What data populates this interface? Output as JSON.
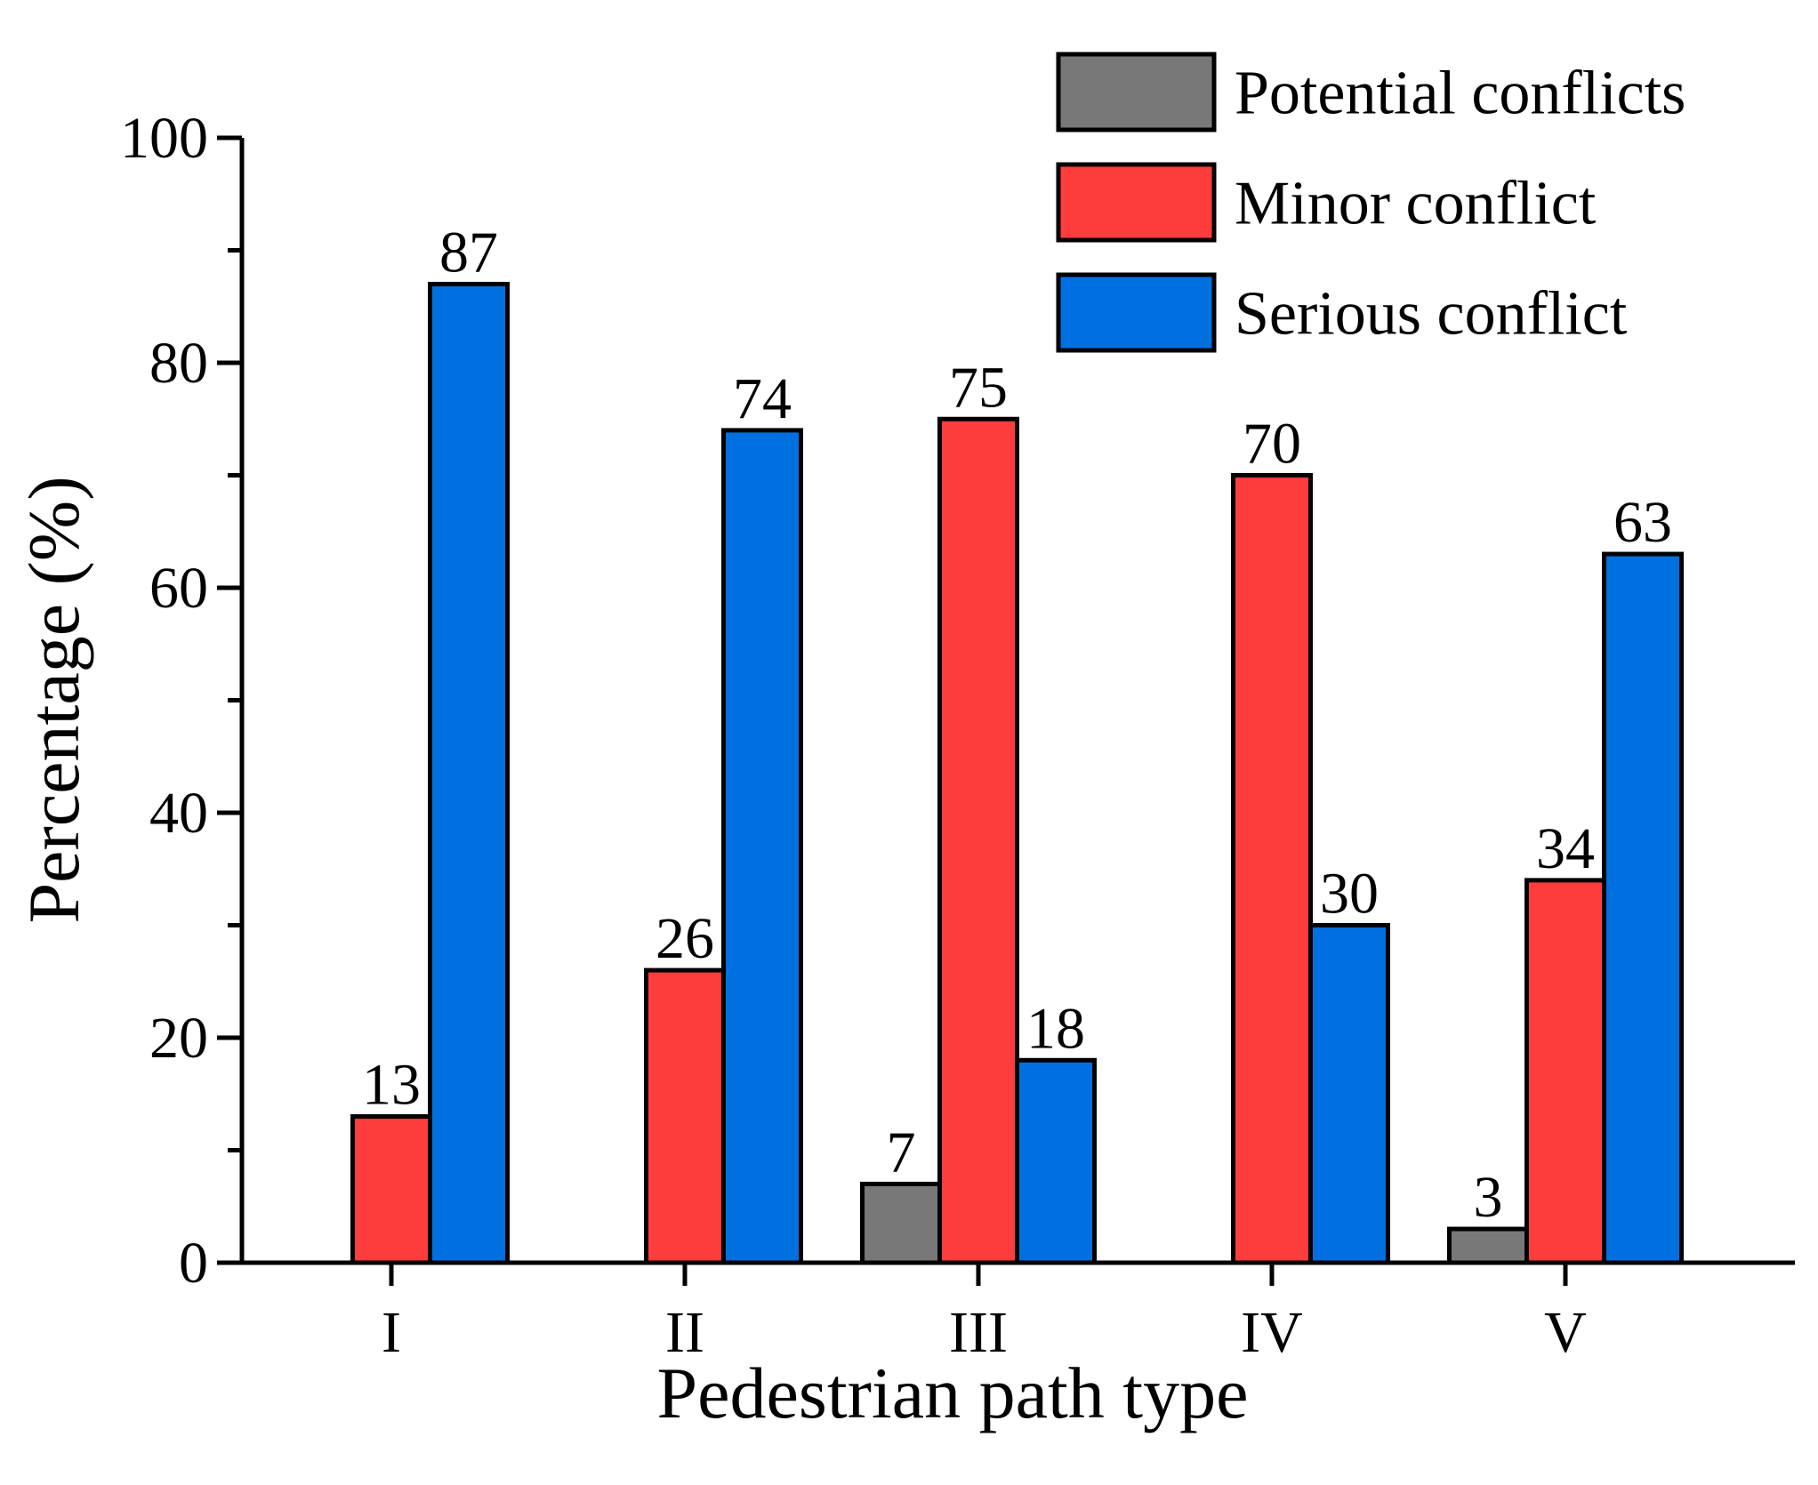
{
  "chart_data": {
    "type": "bar",
    "title": "",
    "xlabel": "Pedestrian path type",
    "ylabel": "Percentage (%)",
    "categories": [
      "I",
      "II",
      "III",
      "IV",
      "V"
    ],
    "ylim": [
      0,
      100
    ],
    "yticks": [
      0,
      20,
      40,
      60,
      80,
      100
    ],
    "ytick_labels": [
      "0",
      "20",
      "40",
      "60",
      "80",
      "100"
    ],
    "grid": false,
    "legend_position": "top-right",
    "series": [
      {
        "name": "Potential conflicts",
        "color": "#787878",
        "values": [
          null,
          null,
          7,
          null,
          3
        ],
        "labels": [
          "",
          "",
          "7",
          "",
          "3"
        ]
      },
      {
        "name": "Minor conflict",
        "color": "#ff3d3d",
        "values": [
          13,
          26,
          75,
          70,
          34
        ],
        "labels": [
          "13",
          "26",
          "75",
          "70",
          "34"
        ]
      },
      {
        "name": "Serious conflict",
        "color": "#0070e0",
        "values": [
          87,
          74,
          18,
          30,
          63
        ],
        "labels": [
          "87",
          "74",
          "18",
          "30",
          "63"
        ]
      }
    ]
  }
}
